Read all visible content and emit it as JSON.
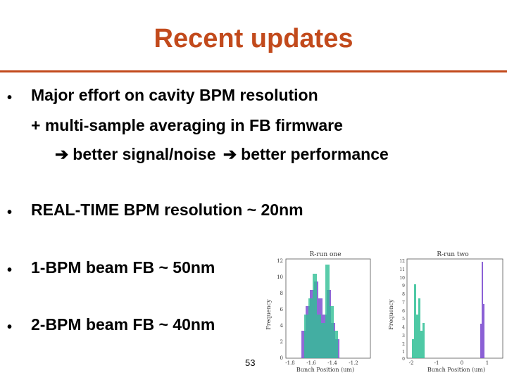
{
  "slide": {
    "title": "Recent updates",
    "bullets": [
      {
        "text": "Major effort on cavity BPM resolution",
        "sub1": "+ multi-sample averaging in FB firmware",
        "sub2_a": "better signal/noise",
        "sub2_b": "better performance"
      },
      {
        "text": "REAL-TIME BPM resolution ~ 20nm"
      },
      {
        "text": "1-BPM beam FB ~ 50nm"
      },
      {
        "text": "2-BPM beam FB ~ 40nm"
      }
    ],
    "page_number": "53",
    "bullet_symbol": "•",
    "arrow_symbol": "➔"
  },
  "figures": {
    "left": {
      "title": "R-run one",
      "ylabel": "Frequency",
      "xlabel": "Bunch Position (um)",
      "yticks": [
        "12",
        "10",
        "8",
        "6",
        "4",
        "2",
        "0"
      ],
      "xticks": [
        "-1.8",
        "-1.6",
        "-1.4",
        "-1.2"
      ]
    },
    "right": {
      "title": "R-run two",
      "ylabel": "Frequency",
      "xlabel": "Bunch Position (um)",
      "yticks": [
        "12",
        "11",
        "10",
        "9",
        "8",
        "7",
        "6",
        "5",
        "4",
        "3",
        "2",
        "1",
        "0"
      ],
      "xticks": [
        "-2",
        "-1",
        "0",
        "1"
      ]
    }
  }
}
